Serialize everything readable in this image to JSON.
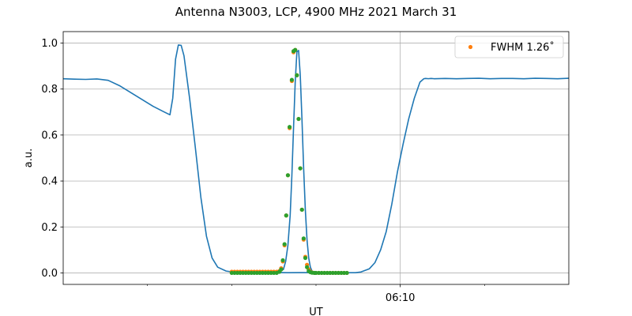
{
  "chart_data": {
    "type": "line",
    "title": "Antenna N3003, LCP, 4900 MHz 2021 March 31",
    "xlabel": "UT",
    "ylabel": "a.u.",
    "x_unit": "minutes (UT)",
    "xlim": [
      6.0,
      15.0
    ],
    "ylim": [
      -0.05,
      1.05
    ],
    "x_major_ticks": [
      {
        "value": 12.0,
        "label": "06:10"
      }
    ],
    "x_minor_ticks": [
      7.5,
      9.0,
      10.5,
      13.5
    ],
    "y_ticks": [
      0.0,
      0.2,
      0.4,
      0.6,
      0.8,
      1.0
    ],
    "y_tick_labels": [
      "0.0",
      "0.2",
      "0.4",
      "0.6",
      "0.8",
      "1.0"
    ],
    "grid": true,
    "legend": {
      "placement": "top-right",
      "entries": [
        "FWHM 1.26$^\\circ$"
      ]
    },
    "legend_display": "FWHM 1.26˚",
    "series": [
      {
        "kind": "line",
        "color": "#1f77b4",
        "x": [
          6.0,
          6.2,
          6.4,
          6.6,
          6.8,
          7.0,
          7.2,
          7.4,
          7.6,
          7.8,
          7.9,
          7.95,
          8.0,
          8.05,
          8.1,
          8.15,
          8.25,
          8.35,
          8.45,
          8.55,
          8.65,
          8.75,
          8.9,
          9.05,
          9.25,
          9.5,
          9.7,
          9.9,
          10.0,
          10.2,
          10.4,
          10.6,
          10.8,
          11.0,
          11.2,
          11.3,
          11.45,
          11.55,
          11.65,
          11.75,
          11.85,
          11.95,
          12.05,
          12.15,
          12.25,
          12.35,
          12.42,
          12.45,
          12.5,
          12.55,
          12.6,
          12.8,
          13.0,
          13.2,
          13.4,
          13.6,
          13.8,
          14.0,
          14.2,
          14.4,
          14.6,
          14.8,
          15.0
        ],
        "y": [
          0.845,
          0.843,
          0.842,
          0.844,
          0.838,
          0.815,
          0.785,
          0.755,
          0.725,
          0.7,
          0.688,
          0.76,
          0.93,
          0.992,
          0.99,
          0.945,
          0.76,
          0.55,
          0.33,
          0.16,
          0.065,
          0.025,
          0.008,
          0.003,
          0.002,
          0.001,
          0.0015,
          0.0012,
          0.001,
          0.0012,
          0.0014,
          0.001,
          0.0008,
          0.0008,
          0.001,
          0.004,
          0.018,
          0.045,
          0.1,
          0.18,
          0.3,
          0.44,
          0.56,
          0.67,
          0.76,
          0.83,
          0.845,
          0.846,
          0.845,
          0.846,
          0.845,
          0.846,
          0.845,
          0.846,
          0.847,
          0.845,
          0.846,
          0.846,
          0.845,
          0.847,
          0.846,
          0.845,
          0.847
        ]
      },
      {
        "kind": "line",
        "color": "#1f77b4",
        "x": [
          9.3,
          9.8,
          9.92,
          9.96,
          10.0,
          10.04,
          10.07,
          10.1,
          10.13,
          10.16,
          10.19,
          10.22,
          10.25,
          10.28,
          10.31,
          10.34,
          10.37,
          10.4,
          10.43,
          10.46,
          10.5,
          10.6,
          11.0
        ],
        "y": [
          0.005,
          0.005,
          0.015,
          0.05,
          0.12,
          0.25,
          0.42,
          0.63,
          0.83,
          0.962,
          0.968,
          0.86,
          0.67,
          0.455,
          0.275,
          0.145,
          0.065,
          0.025,
          0.008,
          0.003,
          0.001,
          0.0,
          0.0
        ]
      },
      {
        "kind": "scatter",
        "color": "#ff7f0e",
        "x": [
          9.0,
          9.05,
          9.1,
          9.15,
          9.2,
          9.25,
          9.3,
          9.35,
          9.4,
          9.45,
          9.5,
          9.55,
          9.6,
          9.65,
          9.7,
          9.75,
          9.8,
          9.85,
          9.88,
          9.91,
          9.94,
          9.97,
          10.0,
          10.03,
          10.07,
          10.1,
          10.13,
          10.16,
          10.19,
          10.22,
          10.25,
          10.28,
          10.31,
          10.34,
          10.37,
          10.4,
          10.43,
          10.47,
          10.5,
          10.55,
          10.6,
          10.65,
          10.7,
          10.75,
          10.8,
          10.85,
          10.9,
          10.95,
          11.0,
          11.05
        ],
        "y": [
          0.005,
          0.005,
          0.005,
          0.005,
          0.005,
          0.005,
          0.005,
          0.005,
          0.005,
          0.005,
          0.005,
          0.005,
          0.005,
          0.005,
          0.005,
          0.005,
          0.005,
          0.008,
          0.02,
          0.05,
          0.12,
          0.25,
          0.425,
          0.63,
          0.835,
          0.96,
          0.97,
          0.86,
          0.67,
          0.455,
          0.275,
          0.145,
          0.07,
          0.035,
          0.015,
          0.005,
          0.002,
          0.0,
          0.0,
          0.0,
          0.0,
          0.0,
          0.0,
          0.0,
          0.0,
          0.0,
          0.0,
          0.0,
          0.0,
          0.0
        ]
      },
      {
        "kind": "scatter",
        "color": "#2ca02c",
        "x": [
          9.0,
          9.05,
          9.1,
          9.15,
          9.2,
          9.25,
          9.3,
          9.35,
          9.4,
          9.45,
          9.5,
          9.55,
          9.6,
          9.65,
          9.7,
          9.75,
          9.8,
          9.85,
          9.88,
          9.91,
          9.94,
          9.97,
          10.0,
          10.03,
          10.07,
          10.1,
          10.13,
          10.16,
          10.19,
          10.22,
          10.25,
          10.28,
          10.31,
          10.34,
          10.37,
          10.4,
          10.43,
          10.47,
          10.5,
          10.55,
          10.6,
          10.65,
          10.7,
          10.75,
          10.8,
          10.85,
          10.9,
          10.95,
          11.0,
          11.05
        ],
        "y": [
          0.0,
          0.0,
          0.0,
          0.0,
          0.0,
          0.0,
          0.0,
          0.0,
          0.0,
          0.0,
          0.0,
          0.0,
          0.0,
          0.0,
          0.0,
          0.0,
          0.0,
          0.005,
          0.015,
          0.055,
          0.125,
          0.25,
          0.425,
          0.635,
          0.84,
          0.965,
          0.97,
          0.86,
          0.67,
          0.455,
          0.275,
          0.15,
          0.065,
          0.025,
          0.008,
          0.003,
          0.001,
          0.0,
          0.0,
          0.0,
          0.0,
          0.0,
          0.0,
          0.0,
          0.0,
          0.0,
          0.0,
          0.0,
          0.0,
          0.0
        ]
      }
    ]
  }
}
